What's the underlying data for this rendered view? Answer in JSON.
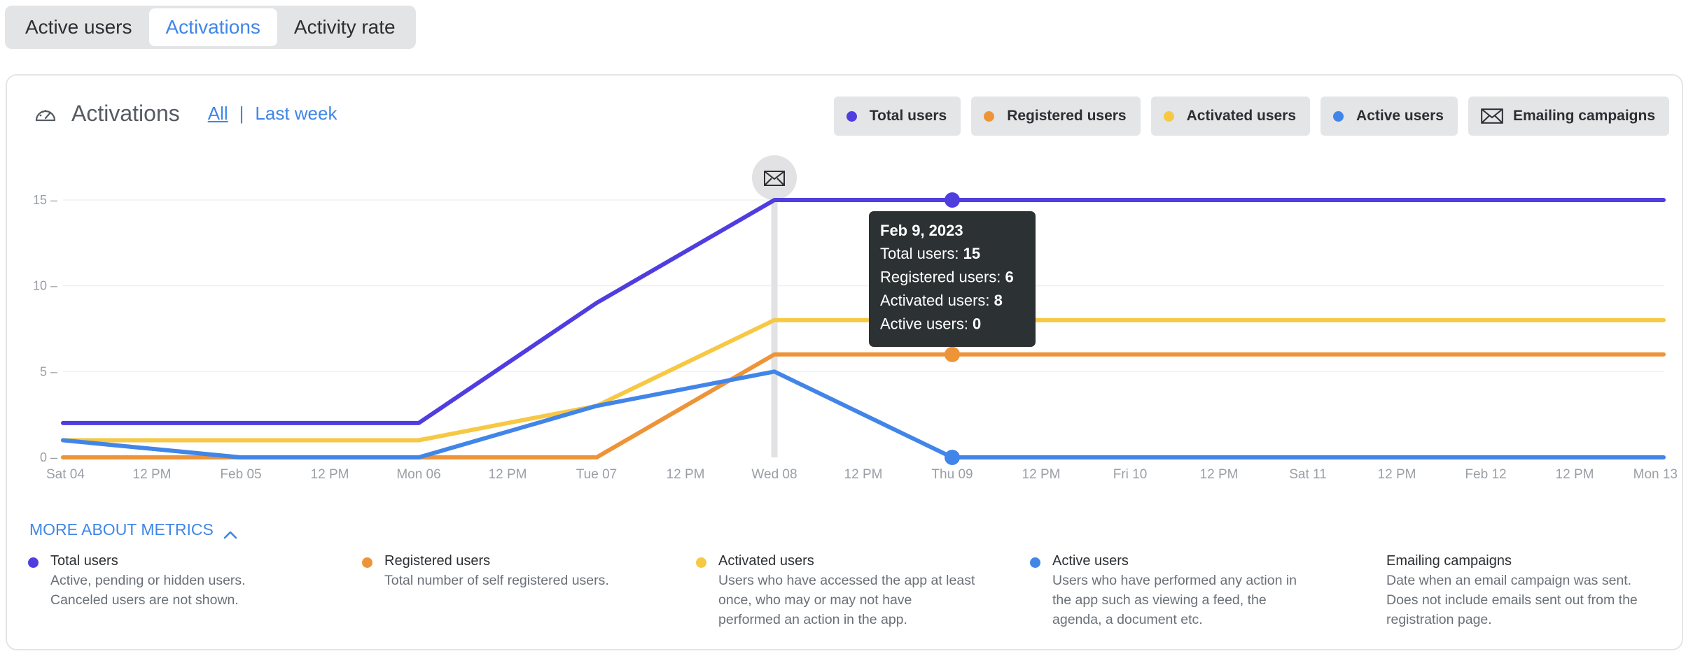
{
  "tabs": [
    {
      "label": "Active users",
      "active": false
    },
    {
      "label": "Activations",
      "active": true
    },
    {
      "label": "Activity rate",
      "active": false
    }
  ],
  "card": {
    "title": "Activations",
    "icon": "speedometer-icon",
    "filters": {
      "all": "All",
      "last_week": "Last week",
      "selected": "All"
    }
  },
  "legend": [
    {
      "label": "Total users",
      "color": "#4f3de0"
    },
    {
      "label": "Registered users",
      "color": "#ee9438"
    },
    {
      "label": "Activated users",
      "color": "#f6c844"
    },
    {
      "label": "Active users",
      "color": "#4285e8"
    },
    {
      "label": "Emailing campaigns",
      "icon": "envelope-icon"
    }
  ],
  "chart_data": {
    "type": "line",
    "x_tick_labels": [
      "Sat 04",
      "12 PM",
      "Feb 05",
      "12 PM",
      "Mon 06",
      "12 PM",
      "Tue 07",
      "12 PM",
      "Wed 08",
      "12 PM",
      "Thu 09",
      "12 PM",
      "Fri 10",
      "12 PM",
      "Sat 11",
      "12 PM",
      "Feb 12",
      "12 PM",
      "Mon 13"
    ],
    "y_ticks": [
      0,
      5,
      10,
      15
    ],
    "ylim": [
      0,
      15
    ],
    "x_domain": [
      0,
      9
    ],
    "series": [
      {
        "name": "Total users",
        "color": "#4f3de0",
        "x": [
          0,
          2,
          3,
          4,
          5,
          6,
          7,
          8,
          9
        ],
        "values": [
          2,
          2,
          9,
          15,
          15,
          15,
          15,
          15,
          15
        ]
      },
      {
        "name": "Activated users",
        "color": "#f6c844",
        "x": [
          0,
          2,
          3,
          4,
          5,
          6,
          7,
          8,
          9
        ],
        "values": [
          1,
          1,
          3,
          8,
          8,
          8,
          8,
          8,
          8
        ]
      },
      {
        "name": "Registered users",
        "color": "#ee9438",
        "x": [
          0,
          2,
          3,
          4,
          5,
          6,
          7,
          8,
          9
        ],
        "values": [
          0,
          0,
          0,
          6,
          6,
          6,
          6,
          6,
          6
        ]
      },
      {
        "name": "Active users",
        "color": "#4285e8",
        "x": [
          0,
          1,
          2,
          3,
          4,
          5,
          6,
          7,
          8,
          9
        ],
        "values": [
          1,
          0,
          0,
          3,
          5,
          0,
          0,
          0,
          0,
          0
        ]
      }
    ],
    "email_campaign_x": [
      4
    ],
    "hover": {
      "x": 5,
      "date": "Feb 9, 2023",
      "rows": [
        {
          "label": "Total users:",
          "value": "15"
        },
        {
          "label": "Registered users:",
          "value": "6"
        },
        {
          "label": "Activated users:",
          "value": "8"
        },
        {
          "label": "Active users:",
          "value": "0"
        }
      ]
    },
    "grid": "horizontal"
  },
  "more_about": {
    "label": "MORE ABOUT METRICS",
    "items": [
      {
        "name": "Total users",
        "color": "#4f3de0",
        "desc": "Active, pending or hidden users.\nCanceled users are not shown."
      },
      {
        "name": "Registered users",
        "color": "#ee9438",
        "desc": "Total number of self registered users."
      },
      {
        "name": "Activated users",
        "color": "#f6c844",
        "desc": "Users who have accessed the app at least\nonce, who may or may not have\nperformed an action in the app."
      },
      {
        "name": "Active users",
        "color": "#4285e8",
        "desc": "Users who have performed any action in\nthe app such as viewing a feed, the\nagenda, a document etc."
      },
      {
        "name": "Emailing campaigns",
        "color": "",
        "desc": "Date when an email campaign was sent.\nDoes not include emails sent out from the\nregistration page."
      }
    ]
  }
}
